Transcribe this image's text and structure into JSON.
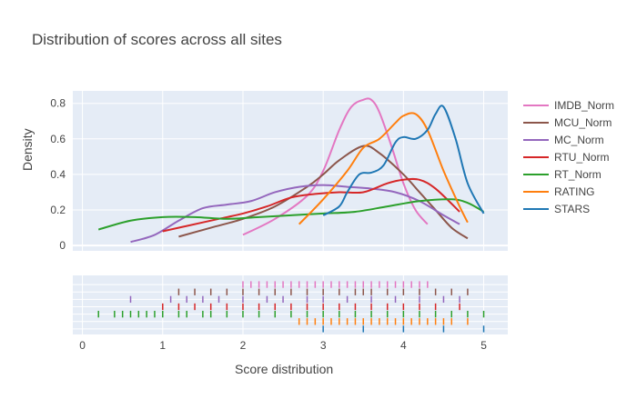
{
  "chart_data": {
    "type": "area",
    "title": "Distribution of scores across all sites",
    "xlabel": "Score distribution",
    "ylabel": "Density",
    "xlim": [
      -0.12,
      5.3
    ],
    "ylim": [
      -0.03,
      0.87
    ],
    "x_ticks": [
      "0",
      "1",
      "2",
      "3",
      "4",
      "5"
    ],
    "x_tick_values": [
      0,
      1,
      2,
      3,
      4,
      5
    ],
    "y_ticks": [
      "0",
      "0.2",
      "0.4",
      "0.6",
      "0.8"
    ],
    "y_tick_values": [
      0,
      0.2,
      0.4,
      0.6,
      0.8
    ],
    "grid": true,
    "legend_position": "right",
    "series": [
      {
        "name": "IMDB_Norm",
        "color": "#e377c2",
        "x": [
          2.0,
          2.4,
          2.8,
          3.0,
          3.2,
          3.35,
          3.5,
          3.6,
          3.7,
          3.85,
          4.0,
          4.15,
          4.3
        ],
        "y": [
          0.06,
          0.15,
          0.28,
          0.42,
          0.65,
          0.78,
          0.82,
          0.82,
          0.75,
          0.56,
          0.35,
          0.2,
          0.12
        ],
        "rug": [
          2.0,
          2.1,
          2.2,
          2.3,
          2.4,
          2.5,
          2.6,
          2.7,
          2.8,
          2.9,
          3.0,
          3.1,
          3.2,
          3.3,
          3.4,
          3.5,
          3.6,
          3.7,
          3.8,
          3.9,
          4.0,
          4.1,
          4.2,
          4.3
        ]
      },
      {
        "name": "MCU_Norm",
        "color": "#8c564b",
        "x": [
          1.2,
          1.6,
          2.0,
          2.4,
          2.8,
          3.0,
          3.2,
          3.5,
          3.7,
          4.0,
          4.2,
          4.4,
          4.6,
          4.8
        ],
        "y": [
          0.05,
          0.1,
          0.15,
          0.22,
          0.33,
          0.4,
          0.48,
          0.56,
          0.52,
          0.4,
          0.3,
          0.2,
          0.1,
          0.04
        ],
        "rug": [
          1.2,
          1.4,
          1.6,
          1.8,
          2.0,
          2.2,
          2.4,
          2.6,
          2.8,
          3.0,
          3.2,
          3.4,
          3.5,
          3.6,
          3.8,
          4.0,
          4.2,
          4.4,
          4.6,
          4.8
        ]
      },
      {
        "name": "MC_Norm",
        "color": "#9467bd",
        "x": [
          0.6,
          0.9,
          1.2,
          1.5,
          1.8,
          2.1,
          2.4,
          2.7,
          3.0,
          3.3,
          3.6,
          3.9,
          4.2,
          4.5,
          4.7
        ],
        "y": [
          0.02,
          0.06,
          0.14,
          0.21,
          0.23,
          0.25,
          0.3,
          0.33,
          0.34,
          0.33,
          0.32,
          0.3,
          0.25,
          0.17,
          0.12
        ],
        "rug": [
          0.6,
          1.1,
          1.3,
          1.5,
          1.7,
          2.0,
          2.3,
          2.5,
          2.8,
          3.0,
          3.3,
          3.6,
          3.9,
          4.2,
          4.5,
          4.7
        ]
      },
      {
        "name": "RTU_Norm",
        "color": "#d62728",
        "x": [
          1.0,
          1.3,
          1.7,
          2.0,
          2.3,
          2.6,
          2.9,
          3.2,
          3.5,
          3.8,
          4.0,
          4.2,
          4.4,
          4.7
        ],
        "y": [
          0.08,
          0.11,
          0.15,
          0.18,
          0.22,
          0.27,
          0.29,
          0.3,
          0.3,
          0.35,
          0.37,
          0.37,
          0.32,
          0.19
        ],
        "rug": [
          1.0,
          1.2,
          1.4,
          1.6,
          1.8,
          2.0,
          2.2,
          2.4,
          2.6,
          2.8,
          3.0,
          3.2,
          3.4,
          3.6,
          3.8,
          4.0,
          4.2,
          4.4,
          4.7
        ]
      },
      {
        "name": "RT_Norm",
        "color": "#2ca02c",
        "x": [
          0.2,
          0.6,
          1.0,
          1.4,
          1.8,
          2.2,
          2.6,
          3.0,
          3.4,
          3.8,
          4.2,
          4.6,
          4.8,
          5.0
        ],
        "y": [
          0.09,
          0.14,
          0.16,
          0.16,
          0.15,
          0.16,
          0.17,
          0.18,
          0.19,
          0.22,
          0.25,
          0.26,
          0.24,
          0.19
        ],
        "rug": [
          0.2,
          0.4,
          0.5,
          0.6,
          0.7,
          0.8,
          0.9,
          1.0,
          1.2,
          1.3,
          1.5,
          1.6,
          1.8,
          2.0,
          2.2,
          2.4,
          2.6,
          2.8,
          3.0,
          3.2,
          3.4,
          3.6,
          3.8,
          4.0,
          4.2,
          4.4,
          4.6,
          4.8,
          5.0
        ]
      },
      {
        "name": "RATING",
        "color": "#ff7f0e",
        "x": [
          2.7,
          3.0,
          3.3,
          3.5,
          3.7,
          3.9,
          4.0,
          4.15,
          4.3,
          4.5,
          4.7,
          4.8
        ],
        "y": [
          0.12,
          0.26,
          0.42,
          0.55,
          0.6,
          0.69,
          0.73,
          0.74,
          0.65,
          0.42,
          0.22,
          0.13
        ],
        "rug": [
          2.7,
          2.8,
          2.9,
          3.0,
          3.1,
          3.2,
          3.3,
          3.4,
          3.5,
          3.6,
          3.7,
          3.8,
          3.9,
          4.0,
          4.1,
          4.2,
          4.3,
          4.4,
          4.5,
          4.6,
          4.8
        ]
      },
      {
        "name": "STARS",
        "color": "#1f77b4",
        "x": [
          3.0,
          3.2,
          3.3,
          3.45,
          3.6,
          3.75,
          3.9,
          4.0,
          4.15,
          4.3,
          4.4,
          4.5,
          4.65,
          4.8,
          5.0
        ],
        "y": [
          0.17,
          0.22,
          0.3,
          0.4,
          0.41,
          0.45,
          0.58,
          0.61,
          0.6,
          0.65,
          0.74,
          0.78,
          0.6,
          0.35,
          0.18
        ],
        "rug": [
          3.0,
          3.5,
          4.0,
          4.5,
          5.0
        ]
      }
    ]
  }
}
